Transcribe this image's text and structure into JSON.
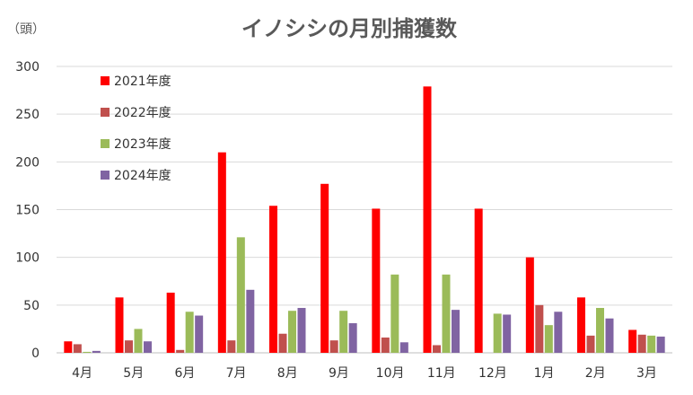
{
  "chart_data": {
    "type": "bar",
    "title": "イノシシの月別捕獲数",
    "ylabel": "（頭）",
    "xlabel": "",
    "categories": [
      "4月",
      "5月",
      "6月",
      "7月",
      "8月",
      "9月",
      "10月",
      "11月",
      "12月",
      "1月",
      "2月",
      "3月"
    ],
    "ylim": [
      0,
      300
    ],
    "yticks": [
      0,
      50,
      100,
      150,
      200,
      250,
      300
    ],
    "grid": true,
    "legend_position": "top-left",
    "series": [
      {
        "name": "2021年度",
        "color": "#ff0000",
        "values": [
          12,
          58,
          63,
          210,
          154,
          177,
          151,
          279,
          151,
          100,
          58,
          24
        ]
      },
      {
        "name": "2022年度",
        "color": "#c0504d",
        "values": [
          9,
          13,
          3,
          13,
          20,
          13,
          16,
          8,
          0,
          50,
          18,
          19
        ]
      },
      {
        "name": "2023年度",
        "color": "#9bbb59",
        "values": [
          1,
          25,
          43,
          121,
          44,
          44,
          82,
          82,
          41,
          29,
          47,
          18
        ]
      },
      {
        "name": "2024年度",
        "color": "#8064a2",
        "values": [
          2,
          12,
          39,
          66,
          47,
          31,
          11,
          45,
          40,
          43,
          36,
          17
        ]
      }
    ]
  }
}
